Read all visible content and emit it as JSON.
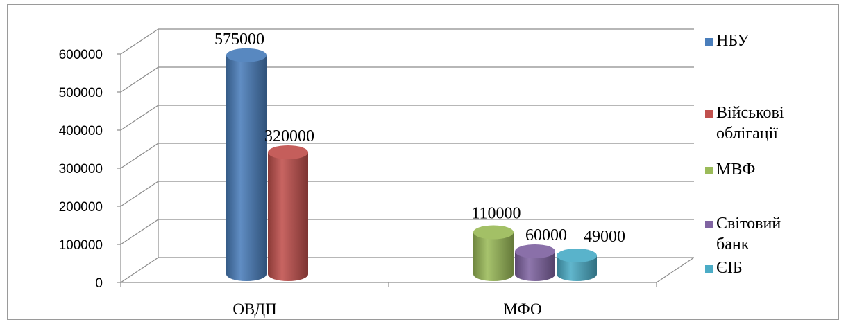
{
  "chart_data": {
    "type": "bar",
    "title": "",
    "xlabel": "",
    "ylabel": "",
    "ylim": [
      0,
      600000
    ],
    "yticks": [
      "0",
      "100000",
      "200000",
      "300000",
      "400000",
      "500000",
      "600000"
    ],
    "categories": [
      "ОВДП",
      "МФО"
    ],
    "grid": true,
    "legend_position": "right",
    "series": [
      {
        "name": "НБУ",
        "color": "#4a7ebb",
        "values": [
          575000,
          null
        ],
        "labels": [
          "575000",
          ""
        ]
      },
      {
        "name": "Військові облігації",
        "color": "#c0504d",
        "values": [
          320000,
          null
        ],
        "labels": [
          "320000",
          ""
        ]
      },
      {
        "name": "МВФ",
        "color": "#9bbb59",
        "values": [
          null,
          110000
        ],
        "labels": [
          "",
          "110000"
        ]
      },
      {
        "name": "Світовий банк",
        "color": "#8064a2",
        "values": [
          null,
          60000
        ],
        "labels": [
          "",
          "60000"
        ]
      },
      {
        "name": "ЄІБ",
        "color": "#4bacc6",
        "values": [
          null,
          49000
        ],
        "labels": [
          "",
          "49000"
        ]
      }
    ],
    "legend_lines": [
      [
        "НБУ"
      ],
      [
        "Військові",
        "облігації"
      ],
      [
        "МВФ"
      ],
      [
        "Світовий",
        "банк"
      ],
      [
        "ЄІБ"
      ]
    ]
  }
}
